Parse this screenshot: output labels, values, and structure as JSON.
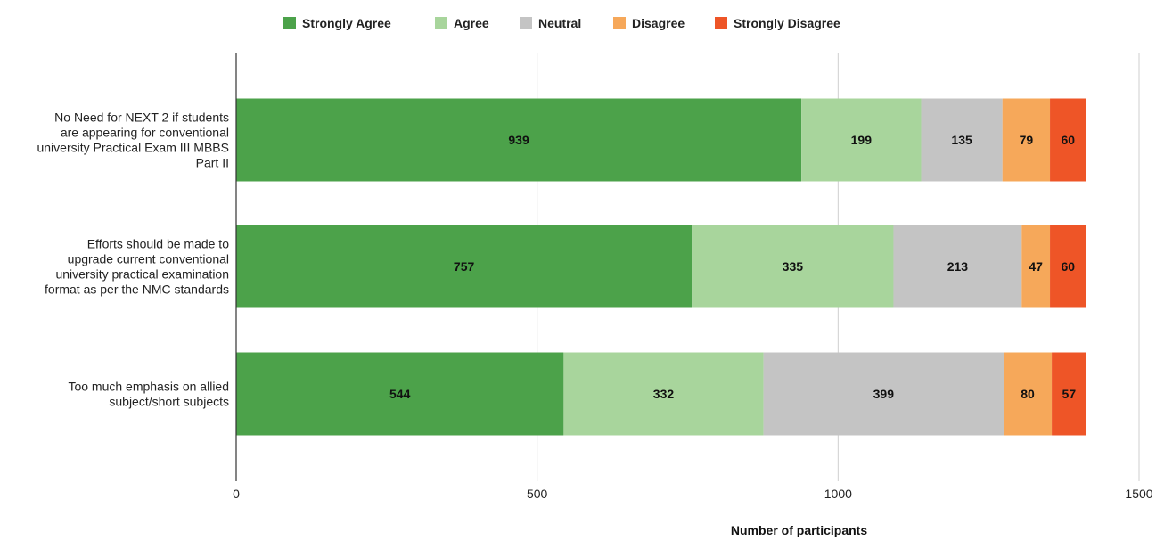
{
  "chart_data": {
    "type": "bar",
    "orientation": "horizontal",
    "stacked": true,
    "categories": [
      [
        "No Need for NEXT 2 if students",
        "are appearing for conventional",
        "university Practical Exam III MBBS",
        "Part II"
      ],
      [
        "Efforts should be made to",
        "upgrade current conventional",
        "university practical examination",
        "format as per the NMC standards"
      ],
      [
        "Too much emphasis on allied",
        "subject/short subjects"
      ]
    ],
    "series": [
      {
        "name": "Strongly Agree",
        "color": "#4ca24a",
        "values": [
          939,
          757,
          544
        ]
      },
      {
        "name": "Agree",
        "color": "#a8d59c",
        "values": [
          199,
          335,
          332
        ]
      },
      {
        "name": "Neutral",
        "color": "#c4c4c4",
        "values": [
          135,
          213,
          399
        ]
      },
      {
        "name": "Disagree",
        "color": "#f6a85a",
        "values": [
          79,
          47,
          80
        ]
      },
      {
        "name": "Strongly Disagree",
        "color": "#ee5527",
        "values": [
          60,
          60,
          57
        ]
      }
    ],
    "xlabel": "Number of participants",
    "xlim": [
      0,
      1500
    ],
    "xticks": [
      0,
      500,
      1000,
      1500
    ],
    "grid": true,
    "legend": "top-center"
  }
}
